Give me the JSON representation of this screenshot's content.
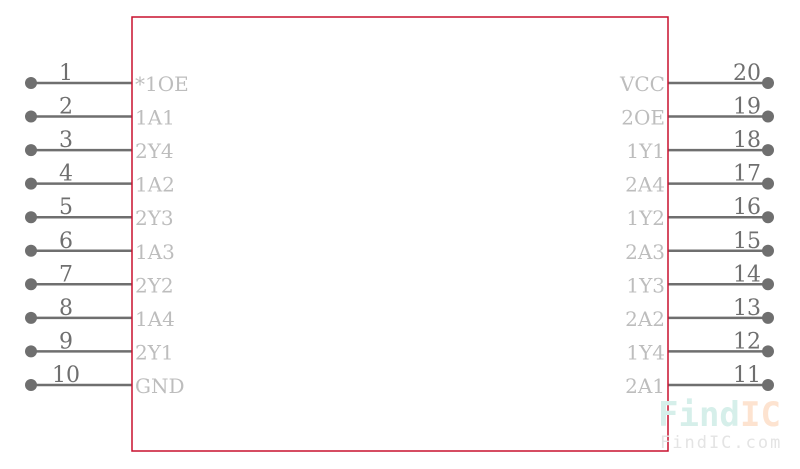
{
  "colors": {
    "body_outline": "#c8102e",
    "pin": "#6f6f6f",
    "pin_label": "#bdbdbd"
  },
  "left_pins": [
    {
      "number": "1",
      "name": "*1OE"
    },
    {
      "number": "2",
      "name": "1A1"
    },
    {
      "number": "3",
      "name": "2Y4"
    },
    {
      "number": "4",
      "name": "1A2"
    },
    {
      "number": "5",
      "name": "2Y3"
    },
    {
      "number": "6",
      "name": "1A3"
    },
    {
      "number": "7",
      "name": "2Y2"
    },
    {
      "number": "8",
      "name": "1A4"
    },
    {
      "number": "9",
      "name": "2Y1"
    },
    {
      "number": "10",
      "name": "GND"
    }
  ],
  "right_pins": [
    {
      "number": "20",
      "name": "VCC"
    },
    {
      "number": "19",
      "name": "2OE"
    },
    {
      "number": "18",
      "name": "1Y1"
    },
    {
      "number": "17",
      "name": "2A4"
    },
    {
      "number": "16",
      "name": "1Y2"
    },
    {
      "number": "15",
      "name": "2A3"
    },
    {
      "number": "14",
      "name": "1Y3"
    },
    {
      "number": "13",
      "name": "2A2"
    },
    {
      "number": "12",
      "name": "1Y4"
    },
    {
      "number": "11",
      "name": "2A1"
    }
  ],
  "watermark": {
    "logo_part1": "Find",
    "logo_part2": "IC",
    "url": "FindIC.com",
    "color1": "#d6efea",
    "color2": "#fde3d0"
  }
}
